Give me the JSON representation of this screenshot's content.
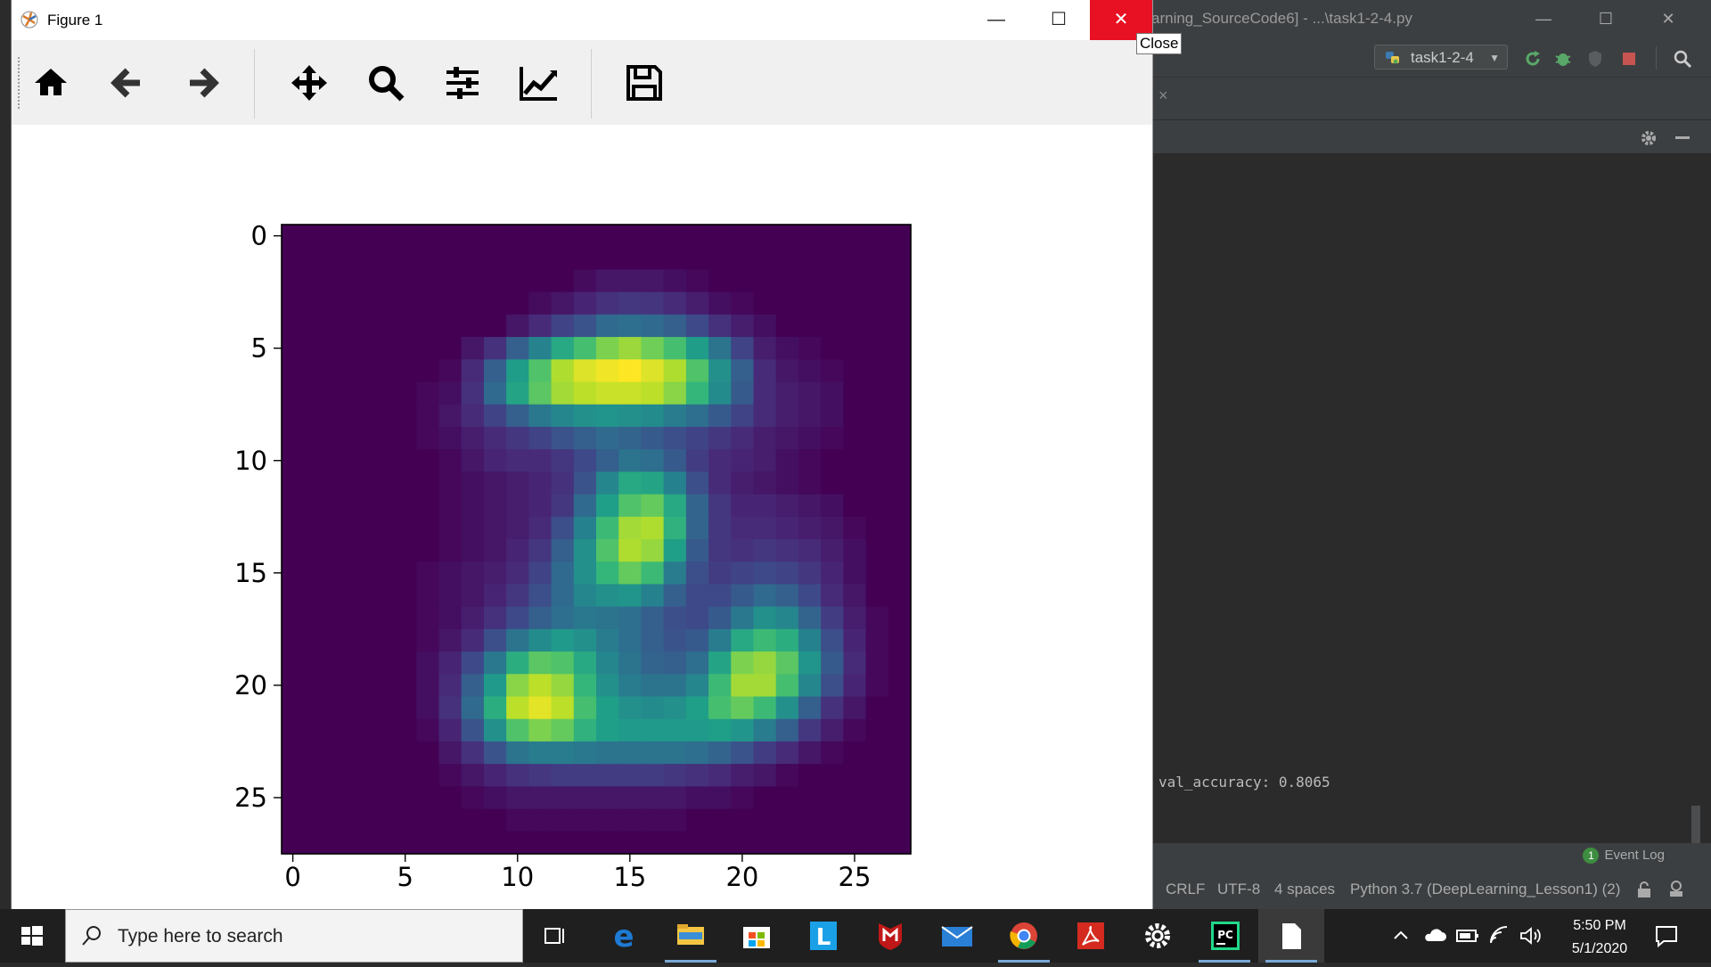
{
  "ide": {
    "title": "arning_SourceCode6] - ...\\task1-2-4.py",
    "run_config": "task1-2-4",
    "console_line": "val_accuracy: 0.8065",
    "event_log_count": "1",
    "event_log_label": "Event Log",
    "status": {
      "line_sep": "CRLF",
      "encoding": "UTF-8",
      "indent": "4 spaces",
      "interpreter": "Python 3.7 (DeepLearning_Lesson1) (2)"
    },
    "window_controls": {
      "minimize": "—",
      "maximize": "☐",
      "close": "✕"
    },
    "tab_close": "×"
  },
  "figure_window": {
    "title": "Figure 1",
    "controls": {
      "minimize": "—",
      "maximize": "☐",
      "close": "✕"
    },
    "tooltip": "Close",
    "toolbar": [
      "home-icon",
      "back-arrow-icon",
      "forward-arrow-icon",
      "pan-move-icon",
      "zoom-magnifier-icon",
      "subplots-sliders-icon",
      "edit-axes-chart-icon",
      "save-floppy-icon"
    ]
  },
  "chart_data": {
    "type": "heatmap",
    "colormap": "viridis",
    "shape": [
      28,
      28
    ],
    "xlim": [
      -0.5,
      27.5
    ],
    "ylim": [
      27.5,
      -0.5
    ],
    "xticks": [
      0,
      5,
      10,
      15,
      20,
      25
    ],
    "yticks": [
      0,
      5,
      10,
      15,
      20,
      25
    ],
    "title": "",
    "xlabel": "",
    "ylabel": "",
    "values": [
      [
        0,
        0,
        0,
        0,
        0,
        0,
        0,
        0,
        0,
        0,
        0,
        0,
        0,
        0,
        0,
        0,
        0,
        0,
        0,
        0,
        0,
        0,
        0,
        0,
        0,
        0,
        0,
        0
      ],
      [
        0,
        0,
        0,
        0,
        0,
        0,
        0,
        0,
        0,
        0,
        0,
        0,
        0,
        0,
        0,
        0,
        0,
        0,
        0,
        0,
        0,
        0,
        0,
        0,
        0,
        0,
        0,
        0
      ],
      [
        0,
        0,
        0,
        0,
        0,
        0,
        0,
        0,
        0,
        0,
        0,
        0,
        0,
        0.03,
        0.06,
        0.06,
        0.06,
        0.04,
        0.02,
        0,
        0,
        0,
        0,
        0,
        0,
        0,
        0,
        0
      ],
      [
        0,
        0,
        0,
        0,
        0,
        0,
        0,
        0,
        0,
        0,
        0,
        0.03,
        0.06,
        0.1,
        0.14,
        0.16,
        0.15,
        0.12,
        0.08,
        0.04,
        0.02,
        0,
        0,
        0,
        0,
        0,
        0,
        0
      ],
      [
        0,
        0,
        0,
        0,
        0,
        0,
        0,
        0,
        0,
        0,
        0.06,
        0.12,
        0.2,
        0.26,
        0.34,
        0.36,
        0.34,
        0.3,
        0.22,
        0.14,
        0.08,
        0.04,
        0,
        0,
        0,
        0,
        0,
        0
      ],
      [
        0,
        0,
        0,
        0,
        0,
        0,
        0,
        0,
        0.06,
        0.14,
        0.3,
        0.45,
        0.6,
        0.7,
        0.8,
        0.85,
        0.78,
        0.7,
        0.55,
        0.38,
        0.2,
        0.08,
        0.04,
        0.02,
        0,
        0,
        0,
        0
      ],
      [
        0,
        0,
        0,
        0,
        0,
        0,
        0,
        0.02,
        0.12,
        0.3,
        0.55,
        0.72,
        0.88,
        0.95,
        0.98,
        1.0,
        0.95,
        0.88,
        0.72,
        0.5,
        0.3,
        0.12,
        0.06,
        0.04,
        0.02,
        0,
        0,
        0
      ],
      [
        0,
        0,
        0,
        0,
        0,
        0,
        0.02,
        0.04,
        0.14,
        0.34,
        0.58,
        0.74,
        0.86,
        0.9,
        0.92,
        0.92,
        0.9,
        0.82,
        0.66,
        0.48,
        0.28,
        0.12,
        0.08,
        0.06,
        0.04,
        0,
        0,
        0
      ],
      [
        0,
        0,
        0,
        0,
        0,
        0,
        0.02,
        0.06,
        0.12,
        0.2,
        0.3,
        0.4,
        0.46,
        0.5,
        0.52,
        0.5,
        0.48,
        0.42,
        0.36,
        0.28,
        0.2,
        0.12,
        0.08,
        0.06,
        0.04,
        0,
        0,
        0
      ],
      [
        0,
        0,
        0,
        0,
        0,
        0,
        0.02,
        0.04,
        0.08,
        0.12,
        0.16,
        0.2,
        0.26,
        0.3,
        0.34,
        0.32,
        0.28,
        0.24,
        0.2,
        0.16,
        0.12,
        0.08,
        0.06,
        0.04,
        0.02,
        0,
        0,
        0
      ],
      [
        0,
        0,
        0,
        0,
        0,
        0,
        0,
        0.02,
        0.06,
        0.1,
        0.12,
        0.12,
        0.16,
        0.22,
        0.3,
        0.38,
        0.36,
        0.28,
        0.18,
        0.12,
        0.1,
        0.08,
        0.04,
        0.02,
        0,
        0,
        0,
        0
      ],
      [
        0,
        0,
        0,
        0,
        0,
        0,
        0,
        0.02,
        0.04,
        0.06,
        0.08,
        0.1,
        0.14,
        0.26,
        0.46,
        0.6,
        0.58,
        0.44,
        0.24,
        0.12,
        0.08,
        0.06,
        0.04,
        0.02,
        0,
        0,
        0,
        0
      ],
      [
        0,
        0,
        0,
        0,
        0,
        0,
        0,
        0.02,
        0.04,
        0.06,
        0.08,
        0.1,
        0.16,
        0.34,
        0.56,
        0.72,
        0.76,
        0.6,
        0.32,
        0.16,
        0.1,
        0.1,
        0.08,
        0.06,
        0.04,
        0,
        0,
        0
      ],
      [
        0,
        0,
        0,
        0,
        0,
        0,
        0,
        0.02,
        0.04,
        0.06,
        0.08,
        0.12,
        0.24,
        0.44,
        0.68,
        0.86,
        0.88,
        0.64,
        0.32,
        0.16,
        0.12,
        0.12,
        0.1,
        0.08,
        0.06,
        0.02,
        0,
        0
      ],
      [
        0,
        0,
        0,
        0,
        0,
        0,
        0,
        0.02,
        0.04,
        0.06,
        0.1,
        0.16,
        0.3,
        0.5,
        0.72,
        0.88,
        0.84,
        0.56,
        0.28,
        0.16,
        0.14,
        0.16,
        0.14,
        0.12,
        0.08,
        0.04,
        0,
        0
      ],
      [
        0,
        0,
        0,
        0,
        0,
        0,
        0.02,
        0.04,
        0.06,
        0.08,
        0.12,
        0.2,
        0.34,
        0.5,
        0.66,
        0.76,
        0.68,
        0.42,
        0.24,
        0.18,
        0.2,
        0.22,
        0.2,
        0.16,
        0.1,
        0.04,
        0,
        0
      ],
      [
        0,
        0,
        0,
        0,
        0,
        0,
        0.02,
        0.04,
        0.06,
        0.1,
        0.16,
        0.24,
        0.34,
        0.46,
        0.5,
        0.52,
        0.44,
        0.3,
        0.22,
        0.22,
        0.28,
        0.34,
        0.3,
        0.22,
        0.12,
        0.06,
        0,
        0
      ],
      [
        0,
        0,
        0,
        0,
        0,
        0,
        0.02,
        0.04,
        0.08,
        0.14,
        0.22,
        0.3,
        0.36,
        0.4,
        0.38,
        0.36,
        0.3,
        0.24,
        0.22,
        0.28,
        0.4,
        0.5,
        0.46,
        0.32,
        0.18,
        0.08,
        0.02,
        0
      ],
      [
        0,
        0,
        0,
        0,
        0,
        0,
        0.02,
        0.06,
        0.12,
        0.24,
        0.38,
        0.48,
        0.54,
        0.5,
        0.42,
        0.36,
        0.3,
        0.26,
        0.28,
        0.42,
        0.6,
        0.68,
        0.62,
        0.44,
        0.24,
        0.1,
        0.02,
        0
      ],
      [
        0,
        0,
        0,
        0,
        0,
        0,
        0.04,
        0.1,
        0.22,
        0.4,
        0.62,
        0.74,
        0.72,
        0.6,
        0.46,
        0.38,
        0.32,
        0.3,
        0.36,
        0.58,
        0.8,
        0.84,
        0.74,
        0.52,
        0.28,
        0.12,
        0.02,
        0
      ],
      [
        0,
        0,
        0,
        0,
        0,
        0,
        0.04,
        0.12,
        0.3,
        0.54,
        0.82,
        0.9,
        0.84,
        0.66,
        0.5,
        0.42,
        0.38,
        0.38,
        0.46,
        0.68,
        0.86,
        0.86,
        0.7,
        0.46,
        0.24,
        0.1,
        0.02,
        0
      ],
      [
        0,
        0,
        0,
        0,
        0,
        0,
        0.04,
        0.14,
        0.34,
        0.62,
        0.9,
        0.96,
        0.9,
        0.7,
        0.56,
        0.5,
        0.48,
        0.5,
        0.56,
        0.7,
        0.76,
        0.68,
        0.5,
        0.3,
        0.14,
        0.06,
        0,
        0
      ],
      [
        0,
        0,
        0,
        0,
        0,
        0,
        0.02,
        0.1,
        0.26,
        0.5,
        0.72,
        0.8,
        0.76,
        0.64,
        0.56,
        0.54,
        0.54,
        0.54,
        0.54,
        0.56,
        0.52,
        0.42,
        0.3,
        0.16,
        0.08,
        0.02,
        0,
        0
      ],
      [
        0,
        0,
        0,
        0,
        0,
        0,
        0,
        0.06,
        0.14,
        0.26,
        0.38,
        0.42,
        0.42,
        0.4,
        0.38,
        0.38,
        0.38,
        0.38,
        0.36,
        0.32,
        0.26,
        0.18,
        0.12,
        0.06,
        0.02,
        0,
        0,
        0
      ],
      [
        0,
        0,
        0,
        0,
        0,
        0,
        0,
        0.02,
        0.06,
        0.1,
        0.14,
        0.16,
        0.18,
        0.18,
        0.18,
        0.18,
        0.18,
        0.16,
        0.14,
        0.12,
        0.08,
        0.06,
        0.02,
        0,
        0,
        0,
        0,
        0
      ],
      [
        0,
        0,
        0,
        0,
        0,
        0,
        0,
        0,
        0.02,
        0.04,
        0.06,
        0.06,
        0.06,
        0.06,
        0.06,
        0.06,
        0.06,
        0.06,
        0.04,
        0.04,
        0.02,
        0,
        0,
        0,
        0,
        0,
        0,
        0
      ],
      [
        0,
        0,
        0,
        0,
        0,
        0,
        0,
        0,
        0,
        0,
        0.02,
        0.02,
        0.02,
        0.02,
        0.02,
        0.02,
        0.02,
        0.02,
        0,
        0,
        0,
        0,
        0,
        0,
        0,
        0,
        0,
        0
      ],
      [
        0,
        0,
        0,
        0,
        0,
        0,
        0,
        0,
        0,
        0,
        0,
        0,
        0,
        0,
        0,
        0,
        0,
        0,
        0,
        0,
        0,
        0,
        0,
        0,
        0,
        0,
        0,
        0
      ]
    ]
  },
  "taskbar": {
    "search_placeholder": "Type here to search",
    "apps": [
      "task-view-icon",
      "edge-icon",
      "file-explorer-icon",
      "store-icon",
      "l-app-icon",
      "mcafee-icon",
      "mail-icon",
      "chrome-icon",
      "acrobat-icon",
      "settings-icon",
      "pycharm-icon",
      "notepad-icon"
    ],
    "time": "5:50 PM",
    "date": "5/1/2020"
  }
}
